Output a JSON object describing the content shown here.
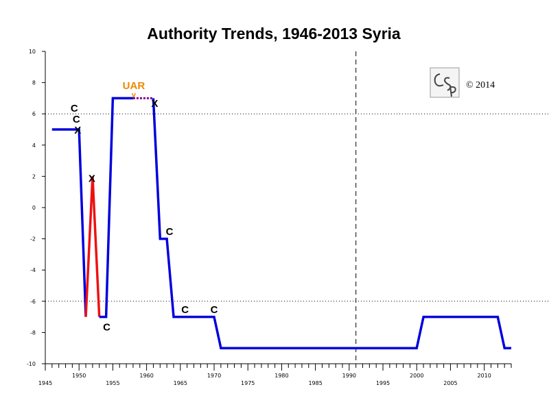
{
  "chart_data": {
    "type": "line",
    "title": "Authority Trends, 1946-2013 Syria",
    "xlabel": "",
    "ylabel": "",
    "xlim": [
      1945,
      2014
    ],
    "ylim": [
      -10,
      10
    ],
    "x_ticks_labeled": [
      1945,
      1950,
      1955,
      1960,
      1965,
      1970,
      1975,
      1980,
      1985,
      1990,
      1995,
      2000,
      2005,
      2010
    ],
    "y_ticks": [
      -10,
      -8,
      -6,
      -4,
      -2,
      0,
      2,
      4,
      6,
      8,
      10
    ],
    "reference_lines": [
      {
        "orientation": "horizontal",
        "value": 6,
        "style": "dotted"
      },
      {
        "orientation": "horizontal",
        "value": -6,
        "style": "dotted"
      },
      {
        "orientation": "vertical",
        "value": 1991,
        "style": "dashed"
      }
    ],
    "series": [
      {
        "color": "#0000dd",
        "points": [
          [
            1946,
            5
          ],
          [
            1950,
            5
          ],
          [
            1951,
            -7
          ],
          [
            1951,
            -7
          ]
        ]
      },
      {
        "color": "#ee1111",
        "points": [
          [
            1951,
            -7
          ],
          [
            1952,
            2
          ],
          [
            1953,
            -7
          ]
        ]
      },
      {
        "color": "#0000dd",
        "points": [
          [
            1953,
            -7
          ],
          [
            1954,
            -7
          ],
          [
            1955,
            7
          ],
          [
            1958,
            7
          ]
        ]
      },
      {
        "color": "#880088",
        "style": "dotted",
        "points": [
          [
            1958,
            7
          ],
          [
            1961,
            7
          ]
        ]
      },
      {
        "color": "#0000dd",
        "points": [
          [
            1961,
            7
          ],
          [
            1962,
            -2
          ],
          [
            1963,
            -2
          ],
          [
            1964,
            -7
          ],
          [
            1970,
            -7
          ],
          [
            1971,
            -9
          ],
          [
            2000,
            -9
          ],
          [
            2001,
            -7
          ],
          [
            2012,
            -7
          ],
          [
            2013,
            -9
          ],
          [
            2014,
            -9
          ]
        ]
      }
    ],
    "annotations": [
      {
        "text": "C",
        "x": 1949.3,
        "y": 6.4
      },
      {
        "text": "C",
        "x": 1949.6,
        "y": 5.7
      },
      {
        "text": "X",
        "x": 1949.8,
        "y": 5.0
      },
      {
        "text": "X",
        "x": 1951.9,
        "y": 1.9
      },
      {
        "text": "C",
        "x": 1954.1,
        "y": -7.6
      },
      {
        "text": "X",
        "x": 1961.2,
        "y": 6.7
      },
      {
        "text": "C",
        "x": 1963.4,
        "y": -1.5
      },
      {
        "text": "C",
        "x": 1965.7,
        "y": -6.5
      },
      {
        "text": "C",
        "x": 1970.0,
        "y": -6.5
      }
    ],
    "uar": {
      "label": "UAR",
      "marker": "v",
      "color": "#ee8800",
      "x": 1958.1,
      "y": 7.8
    }
  },
  "copyright": "© 2014",
  "logo": {
    "text": "CSP"
  }
}
